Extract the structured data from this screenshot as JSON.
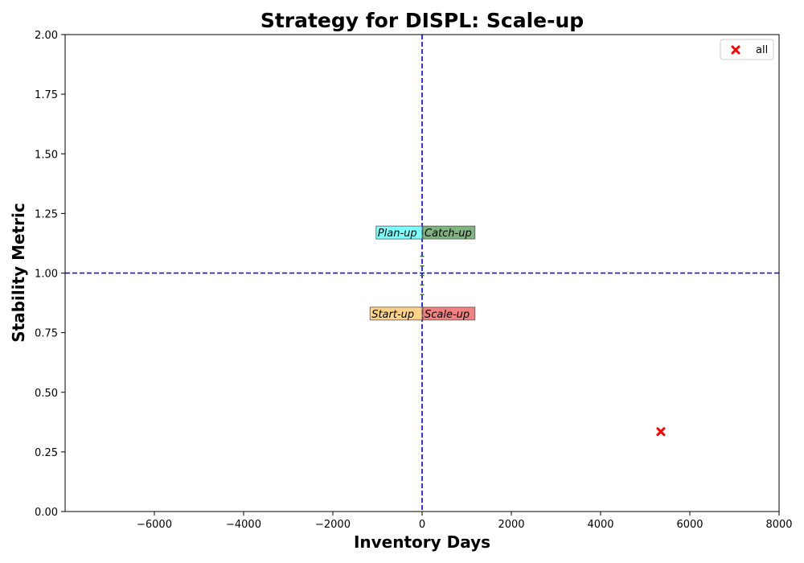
{
  "chart_data": {
    "type": "scatter",
    "title": "Strategy for DISPL: Scale-up",
    "xlabel": "Inventory Days",
    "ylabel": "Stability Metric",
    "xlim": [
      -8000,
      8000
    ],
    "ylim": [
      0,
      2
    ],
    "xticks": [
      -6000,
      -4000,
      -2000,
      0,
      2000,
      4000,
      6000,
      8000
    ],
    "xtick_labels": [
      "−6000",
      "−4000",
      "−2000",
      "0",
      "2000",
      "4000",
      "6000",
      "8000"
    ],
    "yticks": [
      0,
      0.25,
      0.5,
      0.75,
      1.0,
      1.25,
      1.5,
      1.75,
      2.0
    ],
    "ytick_labels": [
      "0.00",
      "0.25",
      "0.50",
      "0.75",
      "1.00",
      "1.25",
      "1.50",
      "1.75",
      "2.00"
    ],
    "reference_lines": {
      "x": 0,
      "y": 1.0,
      "color": "#0000ff",
      "style": "dashed"
    },
    "quadrants": [
      {
        "label": "Plan-up",
        "color": "#66ffff",
        "position": "upper-left"
      },
      {
        "label": "Catch-up",
        "color": "#6aa66a",
        "position": "upper-right"
      },
      {
        "label": "Start-up",
        "color": "#ffcc73",
        "position": "lower-left"
      },
      {
        "label": "Scale-up",
        "color": "#ee6a6a",
        "position": "lower-right"
      }
    ],
    "series": [
      {
        "name": "all",
        "marker": "x",
        "color": "#ff0000",
        "points": [
          {
            "x": 5350,
            "y": 0.335
          }
        ]
      }
    ],
    "legend": {
      "position": "top-right"
    },
    "grid": false
  }
}
